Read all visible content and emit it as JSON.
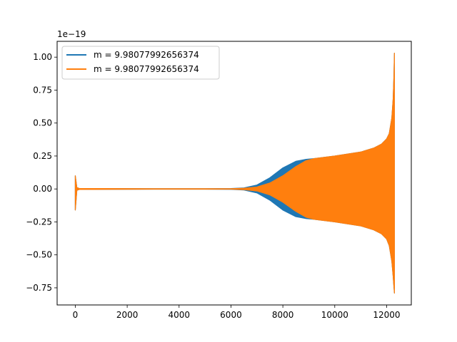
{
  "chart_data": {
    "type": "line",
    "title": "",
    "xlabel": "",
    "ylabel": "",
    "y_offset_label": "1e−19",
    "xlim": [
      -700,
      12950
    ],
    "ylim": [
      -0.88,
      1.12
    ],
    "x_ticks": [
      0,
      2000,
      4000,
      6000,
      8000,
      10000,
      12000
    ],
    "x_tick_labels": [
      "0",
      "2000",
      "4000",
      "6000",
      "8000",
      "10000",
      "12000"
    ],
    "y_ticks": [
      -0.75,
      -0.5,
      -0.25,
      0.0,
      0.25,
      0.5,
      0.75,
      1.0
    ],
    "y_tick_labels": [
      "−0.75",
      "−0.50",
      "−0.25",
      "0.00",
      "0.25",
      "0.50",
      "0.75",
      "1.00"
    ],
    "grid": false,
    "legend_position": "upper-left",
    "series": [
      {
        "name": "m = 9.98077992656374",
        "color": "#1f77b4",
        "envelope": {
          "x": [
            0,
            60,
            150,
            1000,
            3000,
            5000,
            6000,
            6500,
            7000,
            7500,
            8000,
            8500,
            8900,
            9200,
            10000,
            11000,
            11500,
            11800,
            12000,
            12100,
            12200,
            12250,
            12280,
            12300
          ],
          "upper": [
            0.1,
            0.01,
            0.004,
            0.003,
            0.002,
            0.002,
            0.003,
            0.008,
            0.03,
            0.085,
            0.16,
            0.21,
            0.225,
            0.23,
            0.25,
            0.28,
            0.31,
            0.34,
            0.38,
            0.42,
            0.54,
            0.68,
            0.85,
            1.03
          ],
          "lower": [
            -0.16,
            -0.01,
            -0.004,
            -0.003,
            -0.002,
            -0.002,
            -0.003,
            -0.008,
            -0.03,
            -0.085,
            -0.16,
            -0.21,
            -0.225,
            -0.23,
            -0.25,
            -0.28,
            -0.31,
            -0.34,
            -0.38,
            -0.43,
            -0.55,
            -0.66,
            -0.74,
            -0.79
          ]
        }
      },
      {
        "name": "m = 9.98077992656374",
        "color": "#ff7f0e",
        "envelope": {
          "x": [
            0,
            60,
            150,
            1000,
            3000,
            5000,
            6000,
            6500,
            7000,
            7500,
            8000,
            8500,
            8900,
            9200,
            10000,
            11000,
            11500,
            11800,
            12000,
            12100,
            12200,
            12250,
            12280,
            12300
          ],
          "upper": [
            0.1,
            0.01,
            0.004,
            0.003,
            0.002,
            0.002,
            0.002,
            0.005,
            0.015,
            0.045,
            0.1,
            0.17,
            0.215,
            0.23,
            0.25,
            0.28,
            0.31,
            0.34,
            0.38,
            0.42,
            0.54,
            0.68,
            0.85,
            1.03
          ],
          "lower": [
            -0.16,
            -0.01,
            -0.004,
            -0.003,
            -0.002,
            -0.002,
            -0.002,
            -0.005,
            -0.015,
            -0.045,
            -0.1,
            -0.17,
            -0.215,
            -0.23,
            -0.25,
            -0.28,
            -0.31,
            -0.34,
            -0.38,
            -0.43,
            -0.55,
            -0.66,
            -0.74,
            -0.79
          ]
        }
      }
    ]
  }
}
